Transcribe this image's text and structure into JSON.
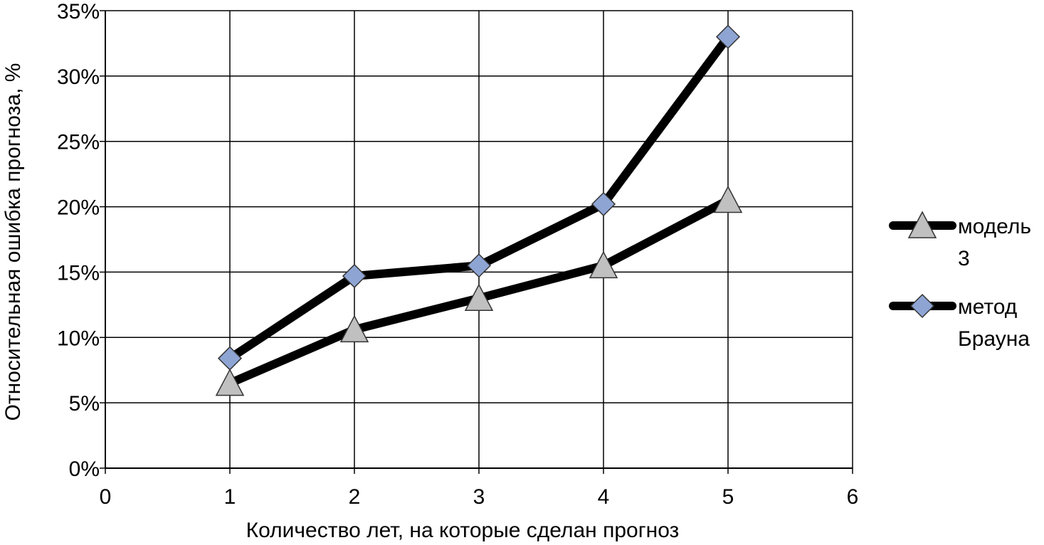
{
  "chart_data": {
    "type": "line",
    "title": "",
    "xlabel": "Количество лет, на которые сделан прогноз",
    "ylabel": "Относительная ошибка прогноза, %",
    "xlim": [
      0,
      6
    ],
    "ylim": [
      0,
      35
    ],
    "x_ticks": [
      "0",
      "1",
      "2",
      "3",
      "4",
      "5",
      "6"
    ],
    "y_ticks": [
      "0%",
      "5%",
      "10%",
      "15%",
      "20%",
      "25%",
      "30%",
      "35%"
    ],
    "grid": true,
    "legend_position": "right",
    "x": [
      1,
      2,
      3,
      4,
      5
    ],
    "series": [
      {
        "name": "модель 3",
        "legend_lines": [
          "модель",
          "3"
        ],
        "marker": "triangle-icon",
        "marker_color": "#c0c0c0",
        "line_color": "#000000",
        "values": [
          6.5,
          10.6,
          13.0,
          15.5,
          20.5
        ]
      },
      {
        "name": "метод Брауна",
        "legend_lines": [
          "метод",
          "Брауна"
        ],
        "marker": "diamond-icon",
        "marker_color": "#8ea5d4",
        "line_color": "#000000",
        "values": [
          8.4,
          14.7,
          15.5,
          20.2,
          33.0
        ]
      }
    ]
  }
}
